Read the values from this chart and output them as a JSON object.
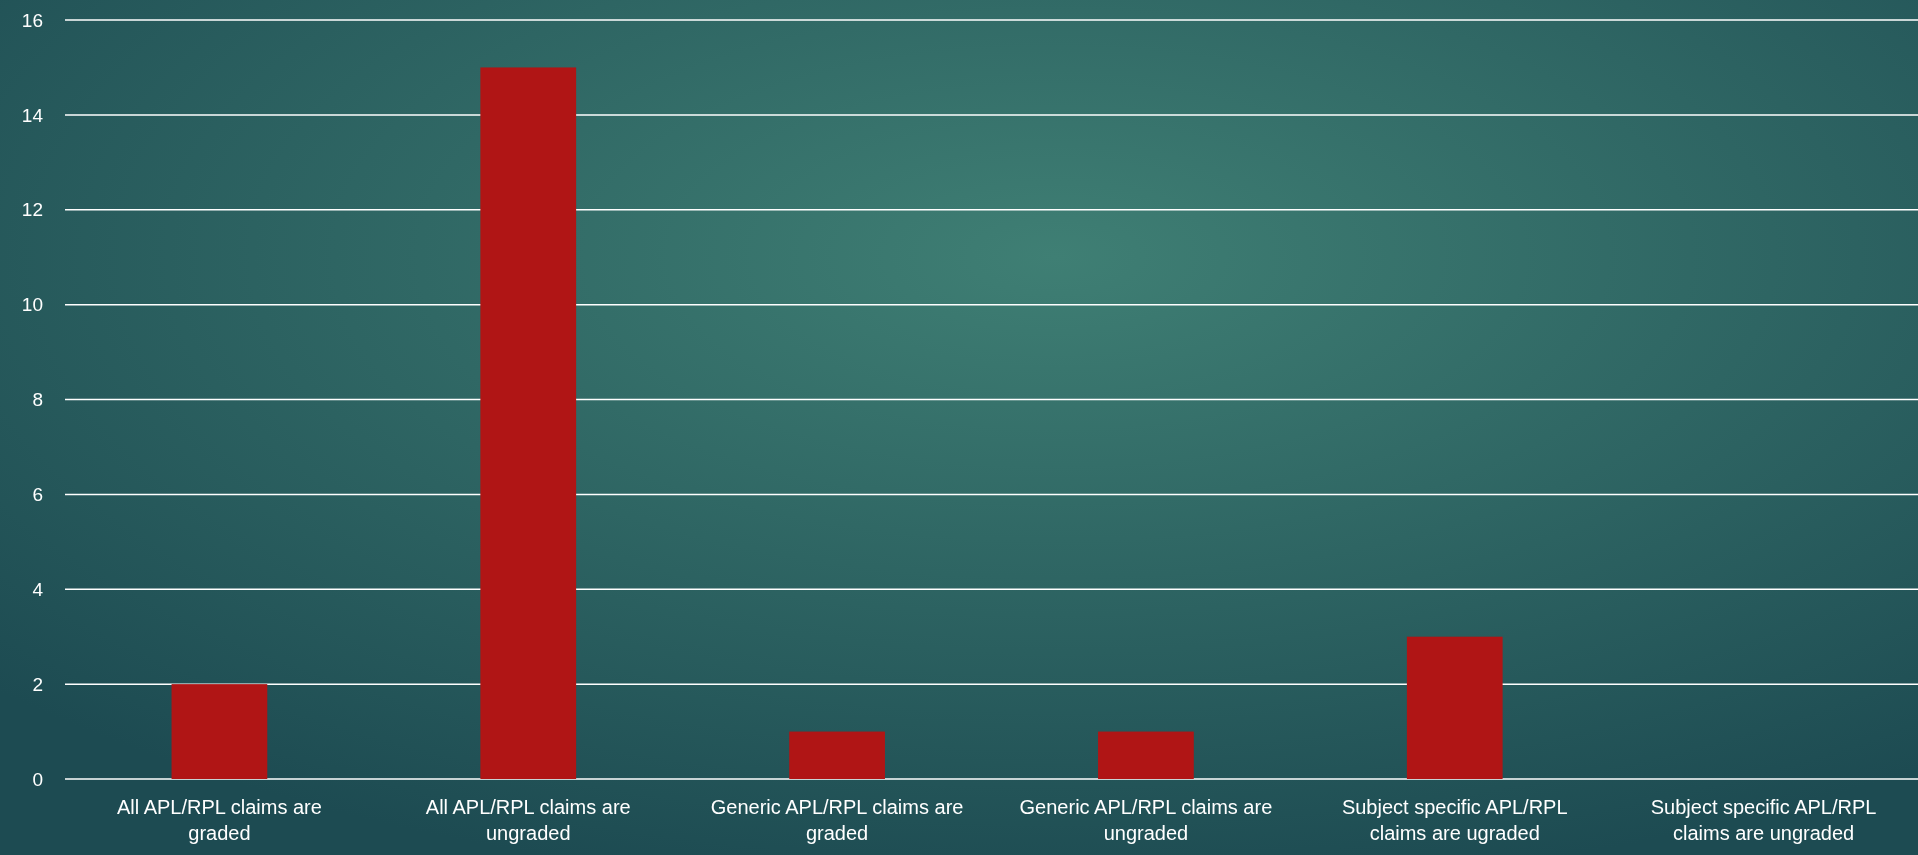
{
  "chart_data": {
    "type": "bar",
    "categories": [
      "All APL/RPL claims are graded",
      "All APL/RPL claims are ungraded",
      "Generic APL/RPL claims are graded",
      "Generic APL/RPL claims are ungraded",
      "Subject specific APL/RPL claims are ugraded",
      "Subject specific APL/RPL claims are ungraded"
    ],
    "values": [
      2,
      15,
      1,
      1,
      3,
      0
    ],
    "color": "#b01515",
    "ylim": [
      0,
      16
    ],
    "yticks": [
      0,
      2,
      4,
      6,
      8,
      10,
      12,
      14,
      16
    ],
    "grid": "y"
  }
}
